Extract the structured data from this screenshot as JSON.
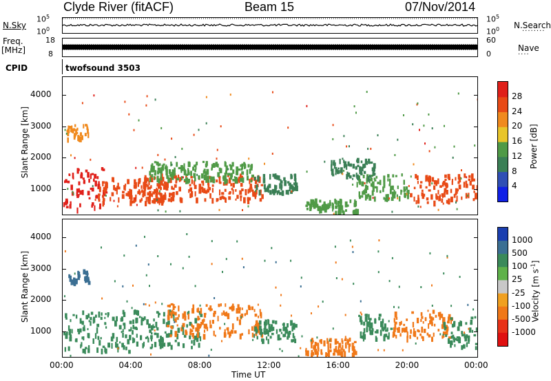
{
  "header": {
    "station": "Clyde River (fitACF)",
    "beam": "Beam 15",
    "date": "07/Nov/2014"
  },
  "aux": {
    "nsky_label": "N.Sky",
    "nsky_top": "10^5",
    "nsky_bot": "10^0",
    "nsky_r_top": "10^5",
    "nsky_r_bot": "10^0",
    "nsearch_label": "N.Search",
    "freq_label": "Freq.",
    "freq_unit": "[MHz]",
    "freq_top": "18",
    "freq_bot": "8",
    "nave_top": "60",
    "nave_bot": "0",
    "nave_label": "Nave",
    "cpid_label": "CPID",
    "cpid_value": "twofsound 3503"
  },
  "chart_data": [
    {
      "type": "heatmap",
      "title": "",
      "xlabel": "Time UT",
      "ylabel": "Slant Range [km]",
      "x_ticks": [
        "00:00",
        "04:00",
        "08:00",
        "12:00",
        "16:00",
        "20:00",
        "00:00"
      ],
      "x_range_hours": [
        0,
        24
      ],
      "y_ticks": [
        1000,
        2000,
        3000,
        4000
      ],
      "ylim": [
        180,
        4580
      ],
      "colorbar": {
        "label": "Power [dB]",
        "ticks": [
          4,
          8,
          12,
          16,
          20,
          24,
          28
        ],
        "range": [
          0,
          32
        ],
        "colors": [
          "#1020e6",
          "#2f4fb5",
          "#3a7f55",
          "#4f9a46",
          "#e8c52a",
          "#f08a1e",
          "#e84a16",
          "#e0201a"
        ]
      },
      "blobs": [
        {
          "t0": 0.0,
          "t1": 2.5,
          "r0": 400,
          "r1": 1700,
          "v": 28
        },
        {
          "t0": 2.0,
          "t1": 6.0,
          "r0": 600,
          "r1": 1400,
          "v": 26
        },
        {
          "t0": 4.5,
          "t1": 11.5,
          "r0": 700,
          "r1": 1500,
          "v": 24
        },
        {
          "t0": 5.0,
          "t1": 11.0,
          "r0": 1300,
          "r1": 1900,
          "v": 14
        },
        {
          "t0": 11.0,
          "t1": 13.5,
          "r0": 900,
          "r1": 1500,
          "v": 10
        },
        {
          "t0": 14.0,
          "t1": 17.0,
          "r0": 300,
          "r1": 700,
          "v": 14
        },
        {
          "t0": 17.0,
          "t1": 20.0,
          "r0": 700,
          "r1": 1500,
          "v": 14
        },
        {
          "t0": 20.0,
          "t1": 24.0,
          "r0": 600,
          "r1": 1500,
          "v": 26
        },
        {
          "t0": 0.2,
          "t1": 1.5,
          "r0": 2600,
          "r1": 3100,
          "v": 22
        },
        {
          "t0": 15.5,
          "t1": 18.0,
          "r0": 1400,
          "r1": 2000,
          "v": 8
        }
      ]
    },
    {
      "type": "heatmap",
      "title": "",
      "xlabel": "Time UT",
      "ylabel": "Slant Range [km]",
      "x_ticks": [
        "00:00",
        "04:00",
        "08:00",
        "12:00",
        "16:00",
        "20:00",
        "00:00"
      ],
      "x_range_hours": [
        0,
        24
      ],
      "y_ticks": [
        1000,
        2000,
        3000,
        4000
      ],
      "ylim": [
        180,
        4580
      ],
      "colorbar": {
        "label": "Velocity [m s^-1]",
        "ticks": [
          "1000",
          "500",
          "100",
          "25",
          "-25",
          "-100",
          "-500",
          "-1000"
        ],
        "colors": [
          "#1b3fb0",
          "#3b6f93",
          "#3a8a5a",
          "#5fb24a",
          "#c8c8c8",
          "#f0a020",
          "#f07818",
          "#e83218",
          "#e01010"
        ]
      },
      "blobs": [
        {
          "t0": 0.0,
          "t1": 4.0,
          "r0": 400,
          "r1": 1700,
          "v": "100"
        },
        {
          "t0": 4.0,
          "t1": 8.0,
          "r0": 500,
          "r1": 1700,
          "v": "100"
        },
        {
          "t0": 6.0,
          "t1": 11.5,
          "r0": 900,
          "r1": 1900,
          "v": "-100"
        },
        {
          "t0": 11.0,
          "t1": 13.5,
          "r0": 700,
          "r1": 1400,
          "v": "100"
        },
        {
          "t0": 14.0,
          "t1": 17.0,
          "r0": 300,
          "r1": 800,
          "v": "-100"
        },
        {
          "t0": 17.0,
          "t1": 19.0,
          "r0": 800,
          "r1": 1600,
          "v": "100"
        },
        {
          "t0": 19.0,
          "t1": 22.5,
          "r0": 800,
          "r1": 1700,
          "v": "-100"
        },
        {
          "t0": 22.0,
          "t1": 24.0,
          "r0": 500,
          "r1": 1500,
          "v": "100"
        },
        {
          "t0": 0.3,
          "t1": 1.5,
          "r0": 2600,
          "r1": 3000,
          "v": "500"
        }
      ]
    }
  ],
  "colors": {
    "axis": "#000000",
    "background": "#ffffff"
  }
}
